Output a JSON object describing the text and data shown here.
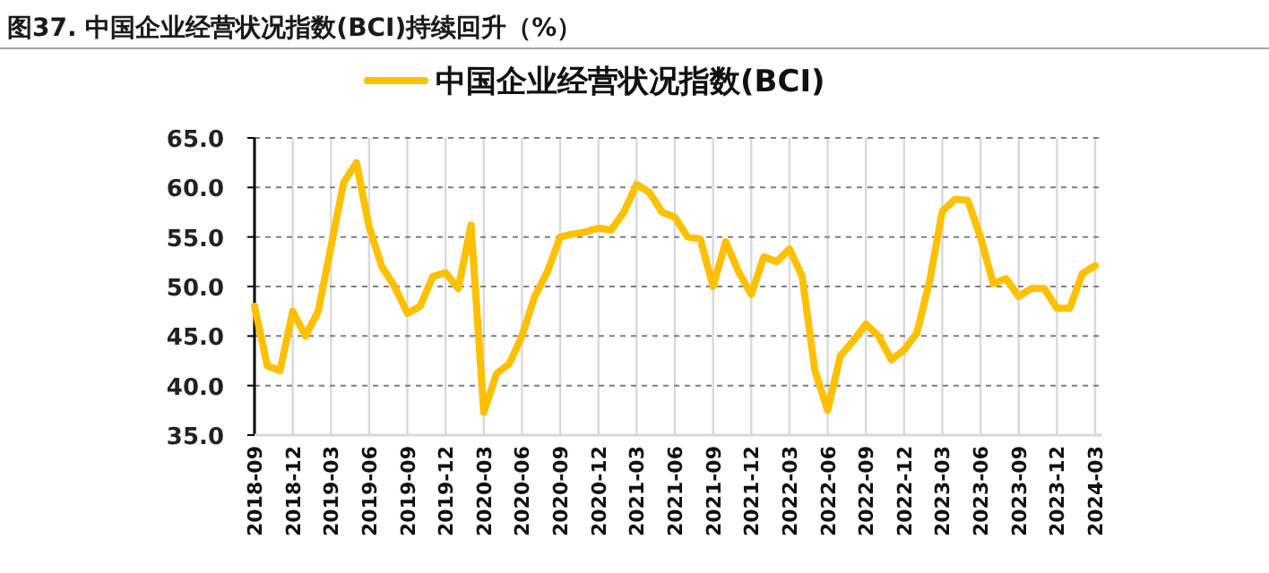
{
  "chart_data": {
    "type": "line",
    "title": "图37. 中国企业经营状况指数(BCI)持续回升（%）",
    "categories": [
      "2018-09",
      null,
      null,
      "2018-12",
      null,
      null,
      "2019-03",
      null,
      null,
      "2019-06",
      null,
      null,
      "2019-09",
      null,
      null,
      "2019-12",
      null,
      null,
      "2020-03",
      null,
      null,
      "2020-06",
      null,
      null,
      "2020-09",
      null,
      null,
      "2020-12",
      null,
      null,
      "2021-03",
      null,
      null,
      "2021-06",
      null,
      null,
      "2021-09",
      null,
      null,
      "2021-12",
      null,
      null,
      "2022-03",
      null,
      null,
      "2022-06",
      null,
      null,
      "2022-09",
      null,
      null,
      "2022-12",
      null,
      null,
      "2023-03",
      null,
      null,
      "2023-06",
      null,
      null,
      "2023-09",
      null,
      null,
      "2023-12",
      null,
      null,
      "2024-03"
    ],
    "series": [
      {
        "name": "中国企业经营状况指数(BCI)",
        "color": "#ffc000",
        "values": [
          48,
          42,
          41.5,
          47.5,
          45,
          47.5,
          54,
          60.5,
          62.5,
          56,
          52,
          50,
          47.3,
          48,
          51,
          51.4,
          49.8,
          56.2,
          37.3,
          41.2,
          42.2,
          45,
          49,
          51.5,
          55,
          55.3,
          55.5,
          55.9,
          55.7,
          57.5,
          60.3,
          59.5,
          57.5,
          57,
          55,
          54.8,
          50,
          54.5,
          51.5,
          49.2,
          53,
          52.5,
          53.8,
          51,
          41.5,
          37.5,
          43,
          44.5,
          46.2,
          45,
          42.6,
          43.6,
          45.3,
          50.5,
          57.6,
          58.8,
          58.7,
          55,
          50.3,
          50.8,
          49,
          49.8,
          49.8,
          47.8,
          47.8,
          51.3,
          52.1
        ]
      }
    ],
    "ylim": [
      35,
      65
    ],
    "yticks": [
      {
        "value": 35,
        "label": "35.0"
      },
      {
        "value": 40,
        "label": "40.0"
      },
      {
        "value": 45,
        "label": "45.0"
      },
      {
        "value": 50,
        "label": "50.0"
      },
      {
        "value": 55,
        "label": "55.0"
      },
      {
        "value": 60,
        "label": "60.0"
      },
      {
        "value": 65,
        "label": "65.0"
      }
    ],
    "grid": true,
    "legend": "top",
    "marker": "none",
    "line_style": "solid"
  }
}
